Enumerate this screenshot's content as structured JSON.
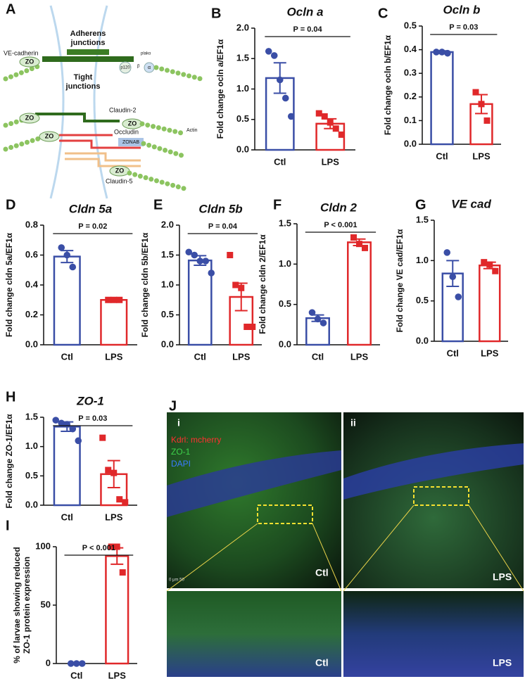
{
  "diagram": {
    "panel": "A",
    "labels": [
      "Adherens",
      "junctions",
      "VE-cadherin",
      "ZO",
      "plako",
      "p120",
      "β",
      "α",
      "Tight",
      "junctions",
      "ZO",
      "Claudin-2",
      "ZO",
      "Actin",
      "ZO",
      "Occludin",
      "ZONAB",
      "ZO",
      "Claudin-5"
    ]
  },
  "images": {
    "panel": "J",
    "tags": [
      "i",
      "ii"
    ],
    "legend": [
      "Kdrl: mcherry",
      "ZO-1",
      "DAPI"
    ],
    "conditions": [
      "Ctl",
      "LPS",
      "Ctl",
      "LPS"
    ],
    "scale": "0   μm   50"
  },
  "chart_data": [
    {
      "type": "bar",
      "panel": "B",
      "title": "Ocln a",
      "ylabel": [
        "Fold change ocln a/EF1α"
      ],
      "categories": [
        "Ctl",
        "LPS"
      ],
      "colors": [
        "#3a4ea6",
        "#e0282a"
      ],
      "markers": [
        "circle",
        "square"
      ],
      "values": [
        1.18,
        0.43
      ],
      "errors": [
        0.25,
        0.08
      ],
      "points": [
        [
          1.62,
          1.55,
          1.15,
          0.85,
          0.55
        ],
        [
          0.6,
          0.55,
          0.45,
          0.35,
          0.25
        ]
      ],
      "ylim": [
        0,
        2
      ],
      "yticks": [
        {
          "value": 0,
          "label": "0.0"
        },
        0.5,
        {
          "value": 1,
          "label": "1.0"
        },
        1.5,
        {
          "value": 2,
          "label": "2.0"
        }
      ],
      "annotation": "P = 0.04"
    },
    {
      "type": "bar",
      "panel": "C",
      "title": "Ocln b",
      "ylabel": [
        "Fold change ocln b/EF1α"
      ],
      "categories": [
        "Ctl",
        "LPS"
      ],
      "colors": [
        "#3a4ea6",
        "#e0282a"
      ],
      "markers": [
        "circle",
        "square"
      ],
      "values": [
        0.39,
        0.17
      ],
      "errors": [
        0.005,
        0.04
      ],
      "points": [
        [
          0.39,
          0.39,
          0.385
        ],
        [
          0.22,
          0.17,
          0.1
        ]
      ],
      "ylim": [
        0,
        0.5
      ],
      "yticks": [
        {
          "value": 0,
          "label": "0.0"
        },
        0.1,
        0.2,
        0.3,
        0.4,
        0.5
      ],
      "annotation": "P = 0.03"
    },
    {
      "type": "bar",
      "panel": "D",
      "title": "Cldn 5a",
      "ylabel": [
        "Fold change cldn 5a/EF1α"
      ],
      "categories": [
        "Ctl",
        "LPS"
      ],
      "colors": [
        "#3a4ea6",
        "#e0282a"
      ],
      "markers": [
        "circle",
        "square"
      ],
      "values": [
        0.59,
        0.3
      ],
      "errors": [
        0.04,
        0.005
      ],
      "points": [
        [
          0.65,
          0.6,
          0.52
        ],
        [
          0.3,
          0.3,
          0.3
        ]
      ],
      "ylim": [
        0,
        0.8
      ],
      "yticks": [
        {
          "value": 0,
          "label": "0.0"
        },
        0.2,
        0.4,
        0.6,
        0.8
      ],
      "annotation": "P = 0.02"
    },
    {
      "type": "bar",
      "panel": "E",
      "title": "Cldn 5b",
      "ylabel": [
        "Fold change cldn 5b/EF1α"
      ],
      "categories": [
        "Ctl",
        "LPS"
      ],
      "colors": [
        "#3a4ea6",
        "#e0282a"
      ],
      "markers": [
        "circle",
        "square"
      ],
      "values": [
        1.41,
        0.8
      ],
      "errors": [
        0.08,
        0.23
      ],
      "points": [
        [
          1.55,
          1.5,
          1.4,
          1.4,
          1.2
        ],
        [
          1.5,
          1.0,
          0.95,
          0.3,
          0.3
        ]
      ],
      "ylim": [
        0,
        2
      ],
      "yticks": [
        {
          "value": 0,
          "label": "0.0"
        },
        0.5,
        {
          "value": 1,
          "label": "1.0"
        },
        1.5,
        {
          "value": 2,
          "label": "2.0"
        }
      ],
      "annotation": "P = 0.04"
    },
    {
      "type": "bar",
      "panel": "F",
      "title": "Cldn 2",
      "ylabel": [
        "Fold change cldn 2/EF1α"
      ],
      "categories": [
        "Ctl",
        "LPS"
      ],
      "colors": [
        "#3a4ea6",
        "#e0282a"
      ],
      "markers": [
        "circle",
        "square"
      ],
      "values": [
        0.33,
        1.27
      ],
      "errors": [
        0.04,
        0.04
      ],
      "points": [
        [
          0.4,
          0.32,
          0.27
        ],
        [
          1.33,
          1.25,
          1.2
        ]
      ],
      "ylim": [
        0,
        1.5
      ],
      "yticks": [
        {
          "value": 0,
          "label": "0.0"
        },
        0.5,
        {
          "value": 1,
          "label": "1.0"
        },
        1.5
      ],
      "annotation": "P < 0.001"
    },
    {
      "type": "bar",
      "panel": "G",
      "title": "VE cad",
      "ylabel": [
        "Fold change VE cad/EF1α"
      ],
      "categories": [
        "Ctl",
        "LPS"
      ],
      "colors": [
        "#3a4ea6",
        "#e0282a"
      ],
      "markers": [
        "circle",
        "square"
      ],
      "values": [
        0.84,
        0.94
      ],
      "errors": [
        0.16,
        0.04
      ],
      "points": [
        [
          1.1,
          0.8,
          0.55
        ],
        [
          0.98,
          0.95,
          0.87
        ]
      ],
      "ylim": [
        0,
        1.5
      ],
      "yticks": [
        {
          "value": 0,
          "label": "0.0"
        },
        0.5,
        {
          "value": 1,
          "label": "1.0"
        },
        1.5
      ]
    },
    {
      "type": "bar",
      "panel": "H",
      "title": "ZO-1",
      "ylabel": [
        "Fold change ZO-1/EF1α"
      ],
      "categories": [
        "Ctl",
        "LPS"
      ],
      "colors": [
        "#3a4ea6",
        "#e0282a"
      ],
      "markers": [
        "circle",
        "square"
      ],
      "values": [
        1.34,
        0.53
      ],
      "errors": [
        0.08,
        0.23
      ],
      "points": [
        [
          1.45,
          1.4,
          1.38,
          1.3,
          1.1
        ],
        [
          1.15,
          0.6,
          0.55,
          0.1,
          0.05
        ]
      ],
      "ylim": [
        0,
        1.5
      ],
      "yticks": [
        {
          "value": 0,
          "label": "0.0"
        },
        0.5,
        {
          "value": 1,
          "label": "1.0"
        },
        1.5
      ],
      "annotation": "P = 0.03"
    },
    {
      "type": "bar",
      "panel": "I",
      "ylabel": [
        "% of larvae showing reduced",
        "ZO-1 protein expression"
      ],
      "categories": [
        "Ctl",
        "LPS"
      ],
      "colors": [
        "#3a4ea6",
        "#e0282a"
      ],
      "markers": [
        "circle",
        "square"
      ],
      "values": [
        0,
        92
      ],
      "errors": [
        0,
        7
      ],
      "points": [
        [
          0,
          0,
          0
        ],
        [
          100,
          100,
          78
        ]
      ],
      "ylim": [
        0,
        100
      ],
      "yticks": [
        0,
        50,
        100
      ],
      "annotation": "P < 0.001"
    }
  ]
}
